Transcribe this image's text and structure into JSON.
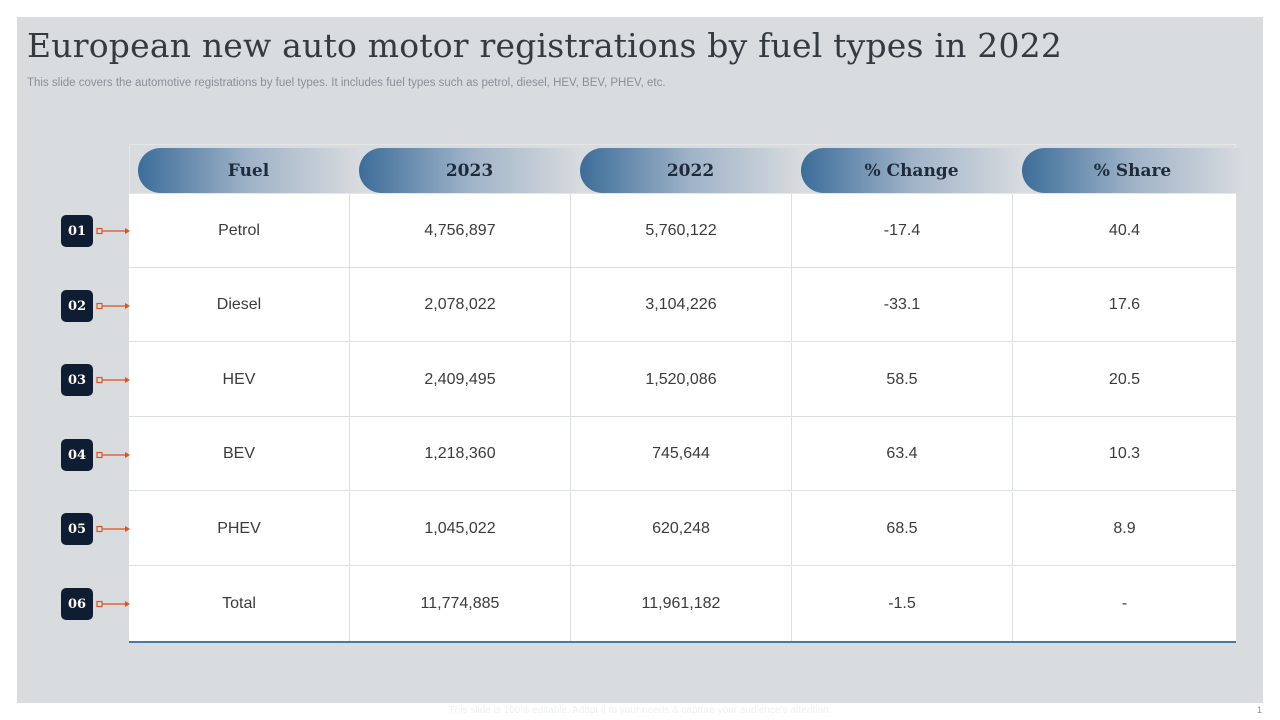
{
  "slide": {
    "title": "European new auto motor registrations by fuel types in 2022",
    "subtitle": "This slide covers the automotive registrations by fuel types. It includes fuel types such as petrol, diesel, HEV, BEV,  PHEV, etc.",
    "footer": "This slide is 100% editable. Adapt it to your needs & capture your audience's attention.",
    "page_number": "1"
  },
  "table": {
    "headers": [
      "Fuel",
      "2023",
      "2022",
      "% Change",
      "% Share"
    ],
    "rows": [
      {
        "badge": "01",
        "cells": [
          "Petrol",
          "4,756,897",
          "5,760,122",
          "-17.4",
          "40.4"
        ]
      },
      {
        "badge": "02",
        "cells": [
          "Diesel",
          "2,078,022",
          "3,104,226",
          "-33.1",
          "17.6"
        ]
      },
      {
        "badge": "03",
        "cells": [
          "HEV",
          "2,409,495",
          "1,520,086",
          "58.5",
          "20.5"
        ]
      },
      {
        "badge": "04",
        "cells": [
          "BEV",
          "1,218,360",
          "745,644",
          "63.4",
          "10.3"
        ]
      },
      {
        "badge": "05",
        "cells": [
          "PHEV",
          "1,045,022",
          "620,248",
          "68.5",
          "8.9"
        ]
      },
      {
        "badge": "06",
        "cells": [
          "Total",
          "11,774,885",
          "11,961,182",
          "-1.5",
          "-"
        ]
      }
    ]
  },
  "colors": {
    "accent_orange": "#e0531f",
    "badge_navy": "#0f1d33",
    "header_blue": "#3c6d99"
  }
}
